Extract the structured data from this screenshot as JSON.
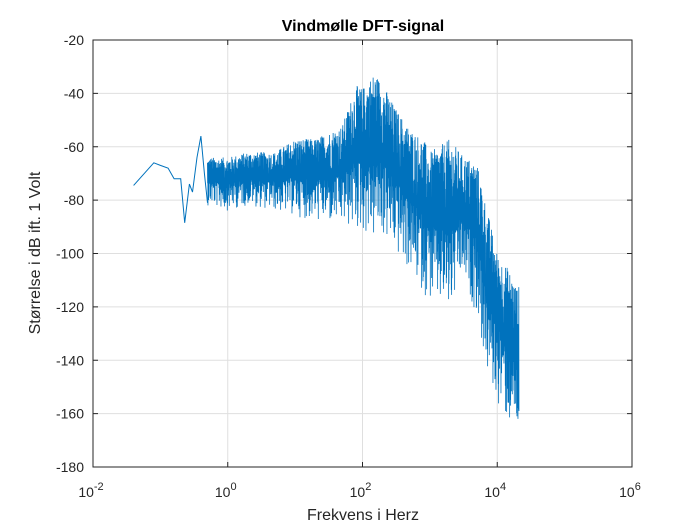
{
  "chart_data": {
    "type": "line",
    "title": "Vindmølle DFT-signal",
    "xlabel": "Frekvens i Herz",
    "ylabel": "Størrelse i dB ift. 1 Volt",
    "xscale": "log",
    "xlim": [
      0.01,
      1000000
    ],
    "ylim": [
      -180,
      -20
    ],
    "grid": true,
    "x_ticks": [
      {
        "base": "10",
        "exp": "-2"
      },
      {
        "base": "10",
        "exp": "0"
      },
      {
        "base": "10",
        "exp": "2"
      },
      {
        "base": "10",
        "exp": "4"
      },
      {
        "base": "10",
        "exp": "6"
      }
    ],
    "y_ticks": [
      "-20",
      "-40",
      "-60",
      "-80",
      "-100",
      "-120",
      "-140",
      "-160",
      "-180"
    ],
    "series_color": "#0072BD",
    "series": [
      {
        "x": [
          0.04,
          0.08,
          0.1,
          0.13,
          0.16,
          0.2,
          0.23,
          0.27,
          0.3,
          0.35,
          0.4,
          0.45,
          0.5
        ],
        "y": [
          -74.5,
          -66,
          -67,
          -68,
          -72,
          -72,
          -88.5,
          -74,
          -77,
          -64,
          -56,
          -70,
          -81
        ]
      }
    ],
    "envelope": {
      "note": "dense band of the series from about 0.5 Hz to 21000 Hz, given as upper and lower values in dB",
      "x": [
        0.5,
        1,
        2,
        5,
        10,
        20,
        50,
        80,
        100,
        150,
        200,
        300,
        500,
        800,
        1000,
        2000,
        3000,
        5000,
        7000,
        10000,
        15000,
        20000,
        21000
      ],
      "upper": [
        -64,
        -64,
        -62,
        -62,
        -57,
        -57,
        -52,
        -37,
        -38,
        -32,
        -36,
        -45,
        -53,
        -57,
        -62,
        -57,
        -63,
        -66,
        -83,
        -100,
        -106,
        -113,
        -112
      ],
      "lower": [
        -82,
        -84,
        -82,
        -84,
        -86,
        -88,
        -90,
        -92,
        -92,
        -96,
        -94,
        -100,
        -107,
        -115,
        -118,
        -124,
        -110,
        -123,
        -146,
        -156,
        -165,
        -168,
        -173
      ]
    }
  }
}
